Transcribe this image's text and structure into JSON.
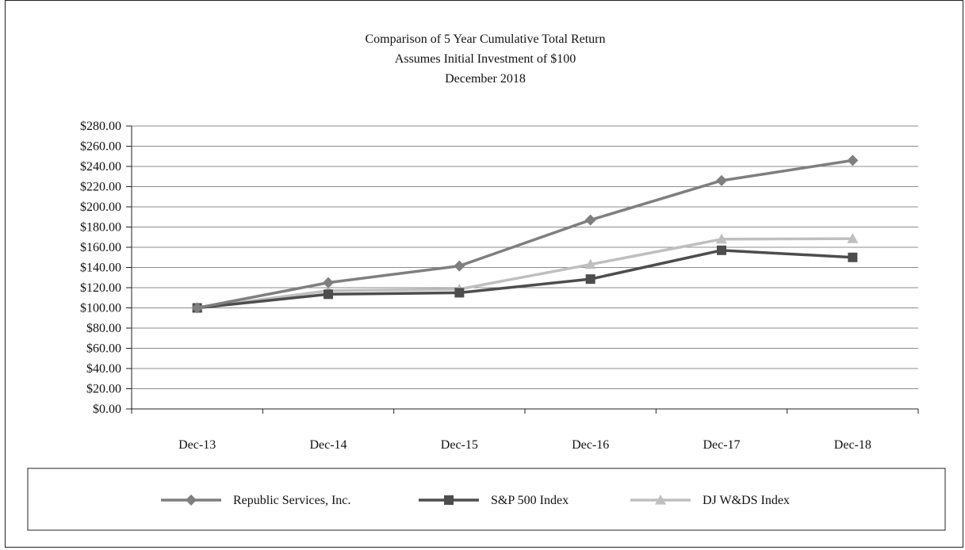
{
  "chart_data": {
    "type": "line",
    "title": "Comparison of 5 Year Cumulative Total Return",
    "subtitle_lines": [
      "Assumes Initial Investment of $100",
      "December 2018"
    ],
    "xlabel": "",
    "ylabel": "",
    "categories": [
      "Dec-13",
      "Dec-14",
      "Dec-15",
      "Dec-16",
      "Dec-17",
      "Dec-18"
    ],
    "ylim": [
      0,
      280
    ],
    "yticks": [
      0,
      20,
      40,
      60,
      80,
      100,
      120,
      140,
      160,
      180,
      200,
      220,
      240,
      260,
      280
    ],
    "ytick_labels": [
      "$0.00",
      "$20.00",
      "$40.00",
      "$60.00",
      "$80.00",
      "$100.00",
      "$120.00",
      "$140.00",
      "$160.00",
      "$180.00",
      "$200.00",
      "$220.00",
      "$240.00",
      "$260.00",
      "$280.00"
    ],
    "grid": "horizontal",
    "legend_position": "bottom",
    "series": [
      {
        "name": "Republic Services, Inc.",
        "marker": "diamond",
        "color": "#7f7f7f",
        "values": [
          100,
          125,
          141.5,
          187,
          226,
          246
        ]
      },
      {
        "name": "S&P 500 Index",
        "marker": "square",
        "color": "#4d4d4d",
        "values": [
          100,
          113.5,
          115,
          128.5,
          157,
          150
        ]
      },
      {
        "name": "DJ W&DS Index",
        "marker": "triangle",
        "color": "#bfbfbf",
        "values": [
          100,
          117,
          118.5,
          143,
          168,
          168.5
        ]
      }
    ]
  }
}
